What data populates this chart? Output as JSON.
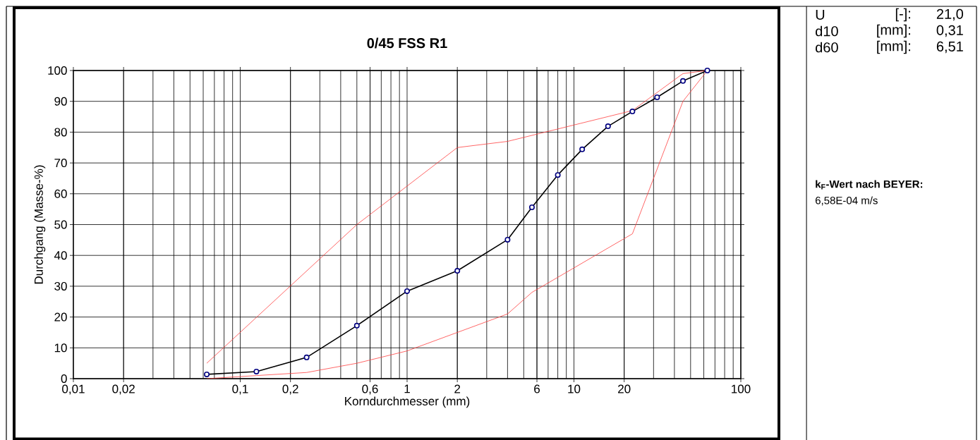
{
  "chart_data": [
    {
      "type": "line",
      "title": "0/45 FSS R1",
      "xlabel": "Korndurchmesser (mm)",
      "ylabel": "Durchgang (Masse-%)",
      "log": "x",
      "grid": true,
      "marker": "circle",
      "line_style": "solid",
      "xlim": [
        0.01,
        100
      ],
      "ylim": [
        0,
        100
      ],
      "xticks": [
        {
          "value": 0.01,
          "label": "0,01"
        },
        {
          "value": 0.02,
          "label": "0,02"
        },
        {
          "value": 0.1,
          "label": "0,1"
        },
        {
          "value": 0.2,
          "label": "0,2"
        },
        {
          "value": 0.6,
          "label": "0,6"
        },
        1,
        2,
        6,
        10,
        20,
        100
      ],
      "yticks": [
        0,
        10,
        20,
        30,
        40,
        50,
        60,
        70,
        80,
        90,
        100
      ],
      "series": [
        {
          "color": "#000000",
          "x": [
            0.063,
            0.125,
            0.25,
            0.5,
            1,
            2,
            4,
            5.6,
            8,
            11.2,
            16,
            22.4,
            31.5,
            45,
            63
          ],
          "values": [
            1.4,
            2.3,
            6.9,
            17.2,
            28.4,
            35.0,
            45.1,
            55.6,
            66.1,
            74.4,
            81.9,
            86.7,
            91.3,
            96.6,
            100
          ]
        },
        {
          "color": "#ff4040",
          "marker": "none",
          "x": [
            0.063,
            0.5,
            2,
            4,
            22.4,
            45,
            63
          ],
          "values": [
            5,
            50,
            75,
            77,
            87,
            99,
            100
          ]
        },
        {
          "color": "#ff4040",
          "marker": "none",
          "x": [
            0.063,
            0.125,
            0.25,
            0.5,
            1,
            4,
            5.6,
            22.4,
            45,
            63
          ],
          "values": [
            0,
            1,
            2,
            5,
            9,
            21,
            28,
            47,
            90,
            100
          ]
        }
      ]
    },
    {
      "type": "other",
      "annotations": [
        "U",
        "[-]:",
        "21,0",
        "d10",
        "[mm]:",
        "0,31",
        "d60",
        "[mm]:",
        "6,51",
        "k$_{F}$-Wert nach BEYER:",
        "6,58E-04 m/s"
      ]
    }
  ]
}
